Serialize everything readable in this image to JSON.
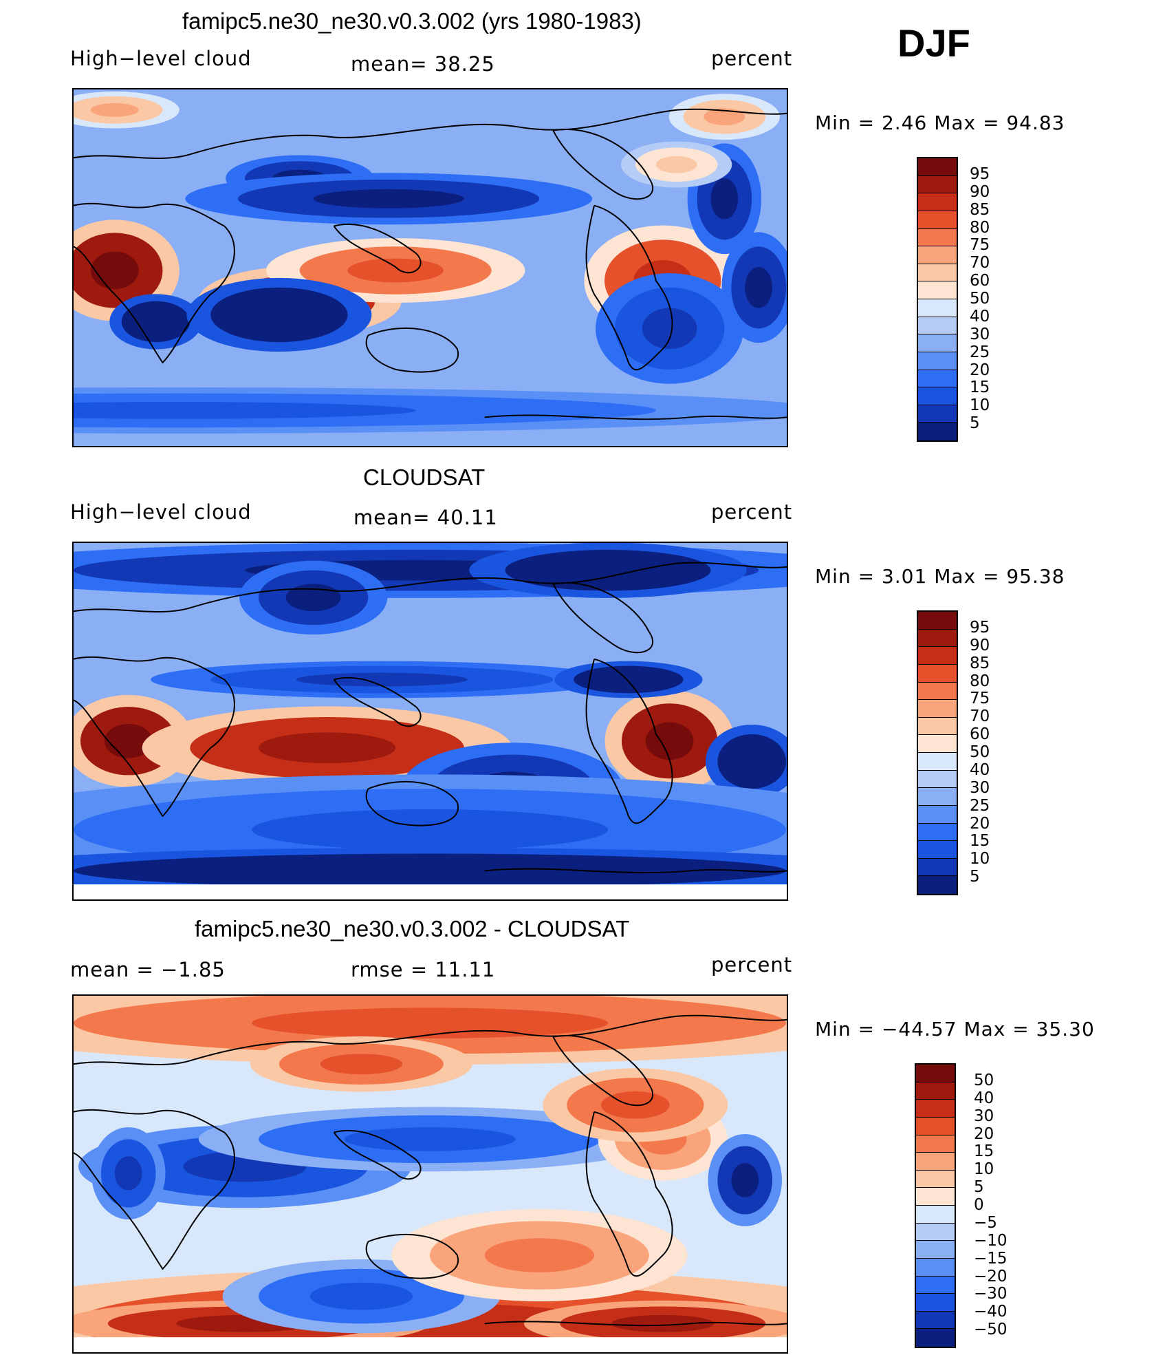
{
  "season": "DJF",
  "units": "percent",
  "colors": {
    "abs_scale": [
      "#0b1f7e",
      "#1238b5",
      "#1a55e0",
      "#2e6ef5",
      "#5a8ff5",
      "#8aaff5",
      "#b5ccf7",
      "#d9e7fb",
      "#fde4d3",
      "#fbc8a6",
      "#f9a47a",
      "#f3794c",
      "#e4512a",
      "#c52f17",
      "#9e1a0f",
      "#760b0b"
    ],
    "diff_scale": [
      "#0b1f7e",
      "#1238b5",
      "#1a55e0",
      "#2e6ef5",
      "#5a8ff5",
      "#8aaff5",
      "#b5ccf7",
      "#d9e7fb",
      "#fde4d3",
      "#fbc8a6",
      "#f9a47a",
      "#f3794c",
      "#e4512a",
      "#c52f17",
      "#9e1a0f",
      "#760b0b"
    ],
    "coast": "#000000"
  },
  "panels": [
    {
      "title": "famipc5.ne30_ne30.v0.3.002 (yrs 1980-1983)",
      "left_text": "High−level cloud",
      "center_text": "mean=  38.25",
      "right_text": "percent",
      "min_max": "Min  =     2.46  Max  =    94.83",
      "colorbar_labels": [
        "95",
        "90",
        "85",
        "80",
        "75",
        "70",
        "60",
        "50",
        "40",
        "30",
        "25",
        "20",
        "15",
        "10",
        "5"
      ],
      "field": "model"
    },
    {
      "title": "CLOUDSAT",
      "left_text": "High−level cloud",
      "center_text": "mean=  40.11",
      "right_text": "percent",
      "min_max": "Min  =     3.01  Max  =    95.38",
      "colorbar_labels": [
        "95",
        "90",
        "85",
        "80",
        "75",
        "70",
        "60",
        "50",
        "40",
        "30",
        "25",
        "20",
        "15",
        "10",
        "5"
      ],
      "field": "obs"
    },
    {
      "title": "famipc5.ne30_ne30.v0.3.002 - CLOUDSAT",
      "left_text": "mean  =   −1.85",
      "center_text": "rmse  =    11.11",
      "right_text": "percent",
      "min_max": "Min  = −44.57  Max  =    35.30",
      "colorbar_labels": [
        "50",
        "40",
        "30",
        "20",
        "15",
        "10",
        "5",
        "0",
        "−5",
        "−10",
        "−15",
        "−20",
        "−30",
        "−40",
        "−50"
      ],
      "field": "diff"
    }
  ]
}
